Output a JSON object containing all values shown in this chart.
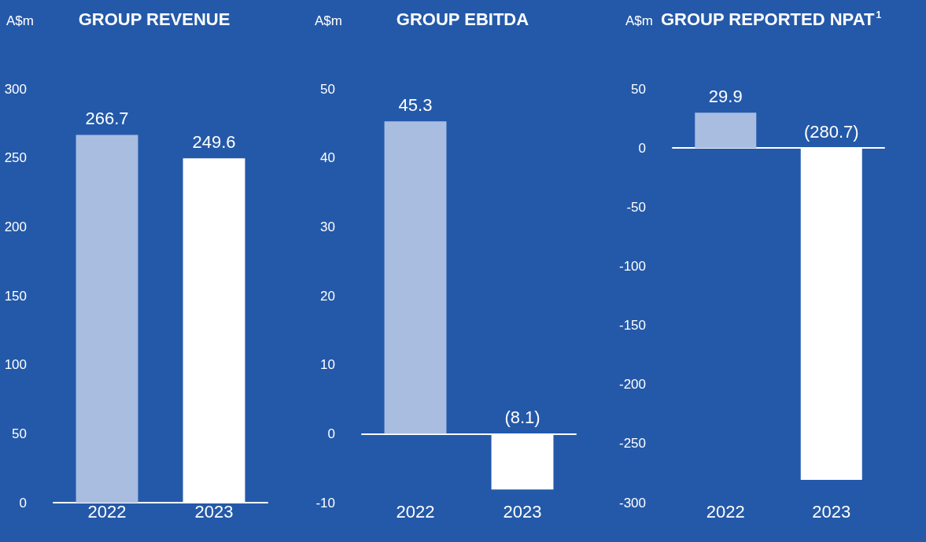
{
  "chart_data": [
    {
      "type": "bar",
      "title": "GROUP REVENUE",
      "ylabel": "A$m",
      "categories": [
        "2022",
        "2023"
      ],
      "values": [
        266.7,
        249.6
      ],
      "colors": [
        "#a9bde0",
        "#ffffff"
      ],
      "value_labels": [
        "266.7",
        "249.6"
      ],
      "ylim": [
        0,
        300
      ],
      "yticks": [
        0,
        50,
        100,
        150,
        200,
        250,
        300
      ]
    },
    {
      "type": "bar",
      "title": "GROUP EBITDA",
      "ylabel": "A$m",
      "categories": [
        "2022",
        "2023"
      ],
      "values": [
        45.3,
        -8.1
      ],
      "colors": [
        "#a9bde0",
        "#ffffff"
      ],
      "value_labels": [
        "45.3",
        "(8.1)"
      ],
      "ylim": [
        -10,
        50
      ],
      "yticks": [
        -10,
        0,
        10,
        20,
        30,
        40,
        50
      ]
    },
    {
      "type": "bar",
      "title": "GROUP REPORTED NPAT$^{1}$",
      "ylabel": "A$m",
      "categories": [
        "2022",
        "2023"
      ],
      "values": [
        29.9,
        -280.7
      ],
      "colors": [
        "#a9bde0",
        "#ffffff"
      ],
      "value_labels": [
        "29.9",
        "(280.7)"
      ],
      "ylim": [
        -300,
        50
      ],
      "yticks": [
        -300,
        -250,
        -200,
        -150,
        -100,
        -50,
        0,
        50
      ]
    }
  ]
}
